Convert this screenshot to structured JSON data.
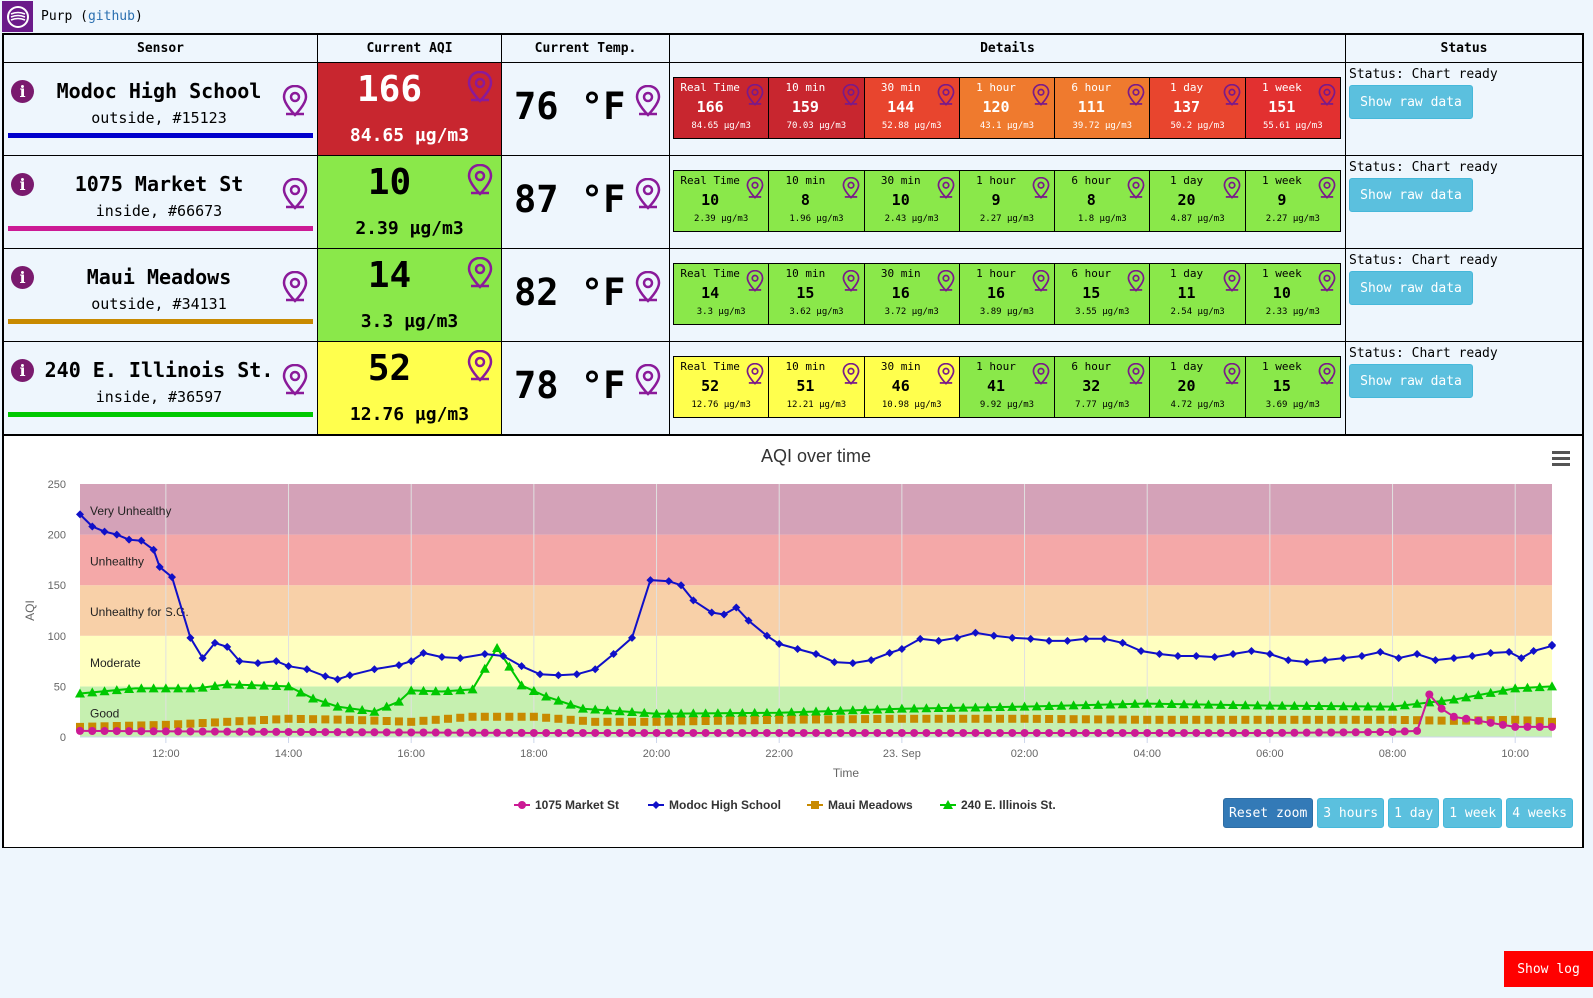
{
  "app": {
    "name": "Purp",
    "link": "github"
  },
  "table": {
    "headers": {
      "sensor": "Sensor",
      "aqi": "Current AQI",
      "temp": "Current Temp.",
      "details": "Details",
      "status": "Status"
    }
  },
  "colors": {
    "very_unhealthy": "#c71f30",
    "unhealthy": "#e8452e",
    "usg": "#ef7a2e",
    "moderate": "#ffff4d",
    "good": "#8ae84a",
    "series": {
      "1075 Market St": "#cc1a95",
      "Modoc High School": "#1010c8",
      "Maui Meadows": "#c88a00",
      "240 E. Illinois St.": "#00c800"
    }
  },
  "sensors": [
    {
      "name": "Modoc High School",
      "sub": "outside, #15123",
      "line_color": "#0000cc",
      "aqi": "166",
      "pm": "84.65 µg/m3",
      "aqi_color": "#c8262f",
      "aqi_text": "#ffffff",
      "temp": "76 °F",
      "details": [
        {
          "label": "Real Time",
          "value": "166",
          "pm": "84.65 µg/m3",
          "color": "#c8262f"
        },
        {
          "label": "10 min",
          "value": "159",
          "pm": "70.03 µg/m3",
          "color": "#c8262f"
        },
        {
          "label": "30 min",
          "value": "144",
          "pm": "52.88 µg/m3",
          "color": "#e8452e"
        },
        {
          "label": "1 hour",
          "value": "120",
          "pm": "43.1 µg/m3",
          "color": "#ef7a2e"
        },
        {
          "label": "6 hour",
          "value": "111",
          "pm": "39.72 µg/m3",
          "color": "#ef7a2e"
        },
        {
          "label": "1 day",
          "value": "137",
          "pm": "50.2 µg/m3",
          "color": "#e8452e"
        },
        {
          "label": "1 week",
          "value": "151",
          "pm": "55.61 µg/m3",
          "color": "#e23030"
        }
      ],
      "status": "Status: Chart ready",
      "button": "Show raw data"
    },
    {
      "name": "1075 Market St",
      "sub": "inside, #66673",
      "line_color": "#cc1a95",
      "aqi": "10",
      "pm": "2.39 µg/m3",
      "aqi_color": "#8ae84a",
      "aqi_text": "#000000",
      "temp": "87 °F",
      "details": [
        {
          "label": "Real Time",
          "value": "10",
          "pm": "2.39 µg/m3",
          "color": "#8ae84a"
        },
        {
          "label": "10 min",
          "value": "8",
          "pm": "1.96 µg/m3",
          "color": "#8ae84a"
        },
        {
          "label": "30 min",
          "value": "10",
          "pm": "2.43 µg/m3",
          "color": "#8ae84a"
        },
        {
          "label": "1 hour",
          "value": "9",
          "pm": "2.27 µg/m3",
          "color": "#8ae84a"
        },
        {
          "label": "6 hour",
          "value": "8",
          "pm": "1.8 µg/m3",
          "color": "#8ae84a"
        },
        {
          "label": "1 day",
          "value": "20",
          "pm": "4.87 µg/m3",
          "color": "#8ae84a"
        },
        {
          "label": "1 week",
          "value": "9",
          "pm": "2.27 µg/m3",
          "color": "#8ae84a"
        }
      ],
      "status": "Status: Chart ready",
      "button": "Show raw data"
    },
    {
      "name": "Maui Meadows",
      "sub": "outside, #34131",
      "line_color": "#c88a00",
      "aqi": "14",
      "pm": "3.3 µg/m3",
      "aqi_color": "#8ae84a",
      "aqi_text": "#000000",
      "temp": "82 °F",
      "details": [
        {
          "label": "Real Time",
          "value": "14",
          "pm": "3.3 µg/m3",
          "color": "#8ae84a"
        },
        {
          "label": "10 min",
          "value": "15",
          "pm": "3.62 µg/m3",
          "color": "#8ae84a"
        },
        {
          "label": "30 min",
          "value": "16",
          "pm": "3.72 µg/m3",
          "color": "#8ae84a"
        },
        {
          "label": "1 hour",
          "value": "16",
          "pm": "3.89 µg/m3",
          "color": "#8ae84a"
        },
        {
          "label": "6 hour",
          "value": "15",
          "pm": "3.55 µg/m3",
          "color": "#8ae84a"
        },
        {
          "label": "1 day",
          "value": "11",
          "pm": "2.54 µg/m3",
          "color": "#8ae84a"
        },
        {
          "label": "1 week",
          "value": "10",
          "pm": "2.33 µg/m3",
          "color": "#8ae84a"
        }
      ],
      "status": "Status: Chart ready",
      "button": "Show raw data"
    },
    {
      "name": "240 E. Illinois St.",
      "sub": "inside, #36597",
      "line_color": "#00c800",
      "aqi": "52",
      "pm": "12.76 µg/m3",
      "aqi_color": "#ffff4d",
      "aqi_text": "#000000",
      "temp": "78 °F",
      "details": [
        {
          "label": "Real Time",
          "value": "52",
          "pm": "12.76 µg/m3",
          "color": "#ffff4d"
        },
        {
          "label": "10 min",
          "value": "51",
          "pm": "12.21 µg/m3",
          "color": "#ffff4d"
        },
        {
          "label": "30 min",
          "value": "46",
          "pm": "10.98 µg/m3",
          "color": "#ffff4d"
        },
        {
          "label": "1 hour",
          "value": "41",
          "pm": "9.92 µg/m3",
          "color": "#8ae84a"
        },
        {
          "label": "6 hour",
          "value": "32",
          "pm": "7.77 µg/m3",
          "color": "#8ae84a"
        },
        {
          "label": "1 day",
          "value": "20",
          "pm": "4.72 µg/m3",
          "color": "#8ae84a"
        },
        {
          "label": "1 week",
          "value": "15",
          "pm": "3.69 µg/m3",
          "color": "#8ae84a"
        }
      ],
      "status": "Status: Chart ready",
      "button": "Show raw data"
    }
  ],
  "zoom_buttons": [
    "Reset zoom",
    "3 hours",
    "1 day",
    "1 week",
    "4 weeks"
  ],
  "show_log": "Show log",
  "chart_data": {
    "type": "line",
    "title": "AQI over time",
    "xlabel": "Time",
    "ylabel": "AQI",
    "ylim": [
      0,
      250
    ],
    "yticks": [
      0,
      50,
      100,
      150,
      200,
      250
    ],
    "xlim_hours": [
      10.6,
      34.6
    ],
    "xticks": [
      {
        "h": 12,
        "label": "12:00"
      },
      {
        "h": 14,
        "label": "14:00"
      },
      {
        "h": 16,
        "label": "16:00"
      },
      {
        "h": 18,
        "label": "18:00"
      },
      {
        "h": 20,
        "label": "20:00"
      },
      {
        "h": 22,
        "label": "22:00"
      },
      {
        "h": 24,
        "label": "23. Sep"
      },
      {
        "h": 26,
        "label": "02:00"
      },
      {
        "h": 28,
        "label": "04:00"
      },
      {
        "h": 30,
        "label": "06:00"
      },
      {
        "h": 32,
        "label": "08:00"
      },
      {
        "h": 34,
        "label": "10:00"
      }
    ],
    "bands": [
      {
        "label": "Good",
        "from": 0,
        "to": 50,
        "color": "#c6f0b0"
      },
      {
        "label": "Moderate",
        "from": 50,
        "to": 100,
        "color": "#ffffc0"
      },
      {
        "label": "Unhealthy for S.G.",
        "from": 100,
        "to": 150,
        "color": "#f8d0a8"
      },
      {
        "label": "Unhealthy",
        "from": 150,
        "to": 200,
        "color": "#f4a8a8"
      },
      {
        "label": "Very Unhealthy",
        "from": 200,
        "to": 250,
        "color": "#d4a2b8"
      }
    ],
    "legend_position": "bottom-center",
    "series": [
      {
        "name": "1075 Market St",
        "marker": "circle",
        "color": "#cc1a95",
        "points": [
          [
            10.6,
            6
          ],
          [
            14,
            5
          ],
          [
            18,
            4
          ],
          [
            22,
            4
          ],
          [
            26,
            4
          ],
          [
            30,
            4
          ],
          [
            32,
            5
          ],
          [
            32.4,
            6
          ],
          [
            32.6,
            42
          ],
          [
            32.8,
            28
          ],
          [
            33,
            20
          ],
          [
            34,
            10
          ],
          [
            34.6,
            10
          ]
        ]
      },
      {
        "name": "Modoc High School",
        "marker": "diamond",
        "color": "#1010c8",
        "points": [
          [
            10.6,
            220
          ],
          [
            10.8,
            208
          ],
          [
            11,
            203
          ],
          [
            11.2,
            200
          ],
          [
            11.4,
            195
          ],
          [
            11.6,
            194
          ],
          [
            11.8,
            185
          ],
          [
            11.9,
            168
          ],
          [
            12.1,
            158
          ],
          [
            12.4,
            98
          ],
          [
            12.6,
            78
          ],
          [
            12.8,
            93
          ],
          [
            13,
            89
          ],
          [
            13.2,
            75
          ],
          [
            13.5,
            73
          ],
          [
            13.8,
            75
          ],
          [
            14,
            70
          ],
          [
            14.3,
            67
          ],
          [
            14.6,
            60
          ],
          [
            14.8,
            57
          ],
          [
            15,
            61
          ],
          [
            15.4,
            67
          ],
          [
            15.8,
            71
          ],
          [
            16,
            75
          ],
          [
            16.2,
            83
          ],
          [
            16.5,
            79
          ],
          [
            16.8,
            78
          ],
          [
            17.2,
            82
          ],
          [
            17.5,
            80
          ],
          [
            17.8,
            70
          ],
          [
            18.1,
            62
          ],
          [
            18.4,
            61
          ],
          [
            18.7,
            62
          ],
          [
            19,
            67
          ],
          [
            19.3,
            82
          ],
          [
            19.6,
            98
          ],
          [
            19.9,
            155
          ],
          [
            20.2,
            154
          ],
          [
            20.4,
            150
          ],
          [
            20.6,
            135
          ],
          [
            20.9,
            123
          ],
          [
            21.1,
            121
          ],
          [
            21.3,
            128
          ],
          [
            21.5,
            115
          ],
          [
            21.8,
            100
          ],
          [
            22,
            92
          ],
          [
            22.3,
            87
          ],
          [
            22.6,
            82
          ],
          [
            22.9,
            74
          ],
          [
            23.2,
            73
          ],
          [
            23.5,
            76
          ],
          [
            23.8,
            83
          ],
          [
            24,
            87
          ],
          [
            24.3,
            97
          ],
          [
            24.6,
            95
          ],
          [
            24.9,
            98
          ],
          [
            25.2,
            103
          ],
          [
            25.5,
            100
          ],
          [
            25.8,
            98
          ],
          [
            26.1,
            97
          ],
          [
            26.4,
            95
          ],
          [
            26.7,
            95
          ],
          [
            27,
            97
          ],
          [
            27.3,
            97
          ],
          [
            27.6,
            93
          ],
          [
            27.9,
            85
          ],
          [
            28.2,
            82
          ],
          [
            28.5,
            80
          ],
          [
            28.8,
            80
          ],
          [
            29.1,
            79
          ],
          [
            29.4,
            82
          ],
          [
            29.7,
            85
          ],
          [
            30,
            82
          ],
          [
            30.3,
            76
          ],
          [
            30.6,
            74
          ],
          [
            30.9,
            76
          ],
          [
            31.2,
            78
          ],
          [
            31.5,
            80
          ],
          [
            31.8,
            84
          ],
          [
            32.1,
            78
          ],
          [
            32.4,
            82
          ],
          [
            32.7,
            76
          ],
          [
            33,
            78
          ],
          [
            33.3,
            80
          ],
          [
            33.6,
            83
          ],
          [
            33.9,
            84
          ],
          [
            34.1,
            78
          ],
          [
            34.3,
            85
          ],
          [
            34.6,
            90
          ],
          [
            34.6,
            91
          ]
        ]
      },
      {
        "name": "Maui Meadows",
        "marker": "square",
        "color": "#c88a00",
        "points": [
          [
            10.6,
            10
          ],
          [
            12,
            12
          ],
          [
            13,
            15
          ],
          [
            14,
            18
          ],
          [
            15,
            17
          ],
          [
            16,
            15
          ],
          [
            17,
            20
          ],
          [
            18,
            20
          ],
          [
            19,
            15
          ],
          [
            20,
            15
          ],
          [
            22,
            17
          ],
          [
            24,
            18
          ],
          [
            26,
            18
          ],
          [
            28,
            17
          ],
          [
            30,
            17
          ],
          [
            32,
            17
          ],
          [
            33,
            16
          ],
          [
            34,
            17
          ],
          [
            34.6,
            15
          ]
        ]
      },
      {
        "name": "240 E. Illinois St.",
        "marker": "triangle",
        "color": "#00c800",
        "points": [
          [
            10.6,
            43
          ],
          [
            11.5,
            48
          ],
          [
            12.5,
            48
          ],
          [
            13,
            52
          ],
          [
            14,
            50
          ],
          [
            14.4,
            38
          ],
          [
            14.8,
            30
          ],
          [
            15.4,
            25
          ],
          [
            15.8,
            35
          ],
          [
            16,
            46
          ],
          [
            16.5,
            45
          ],
          [
            17,
            47
          ],
          [
            17.4,
            88
          ],
          [
            17.8,
            51
          ],
          [
            18.2,
            40
          ],
          [
            18.8,
            28
          ],
          [
            20,
            23
          ],
          [
            22,
            24
          ],
          [
            24,
            28
          ],
          [
            26,
            30
          ],
          [
            28,
            33
          ],
          [
            30,
            31
          ],
          [
            32,
            30
          ],
          [
            33,
            37
          ],
          [
            34,
            48
          ],
          [
            34.6,
            50
          ]
        ]
      }
    ]
  }
}
